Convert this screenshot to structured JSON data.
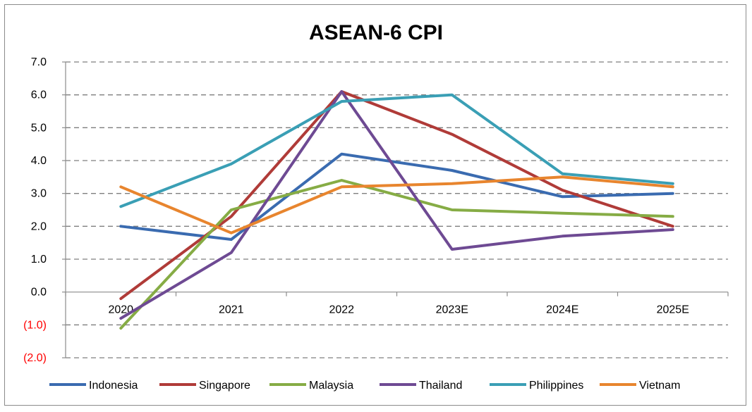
{
  "chart_data": {
    "type": "line",
    "title": "ASEAN-6 CPI",
    "categories": [
      "2020",
      "2021",
      "2022",
      "2023E",
      "2024E",
      "2025E"
    ],
    "ylim": [
      -2.0,
      7.0
    ],
    "yticks": [
      7.0,
      6.0,
      5.0,
      4.0,
      3.0,
      2.0,
      1.0,
      0.0,
      -1.0,
      -2.0
    ],
    "ytick_labels": [
      "7.0",
      "6.0",
      "5.0",
      "4.0",
      "3.0",
      "2.0",
      "1.0",
      "0.0",
      "(1.0)",
      "(2.0)"
    ],
    "negative_label_color": "#ff0000",
    "grid": true,
    "grid_style": "dashed",
    "legend_position": "bottom",
    "series": [
      {
        "name": "Indonesia",
        "color": "#3a6bb0",
        "values": [
          2.0,
          1.6,
          4.2,
          3.7,
          2.9,
          3.0
        ]
      },
      {
        "name": "Singapore",
        "color": "#b03b38",
        "values": [
          -0.2,
          2.3,
          6.1,
          4.8,
          3.1,
          2.0
        ]
      },
      {
        "name": "Malaysia",
        "color": "#86ac45",
        "values": [
          -1.1,
          2.5,
          3.4,
          2.5,
          2.4,
          2.3
        ]
      },
      {
        "name": "Thailand",
        "color": "#6e4a93",
        "values": [
          -0.8,
          1.2,
          6.1,
          1.3,
          1.7,
          1.9
        ]
      },
      {
        "name": "Philippines",
        "color": "#3a9fb5",
        "values": [
          2.6,
          3.9,
          5.8,
          6.0,
          3.6,
          3.3
        ]
      },
      {
        "name": "Vietnam",
        "color": "#e8852e",
        "values": [
          3.2,
          1.8,
          3.2,
          3.3,
          3.5,
          3.2
        ]
      }
    ]
  }
}
